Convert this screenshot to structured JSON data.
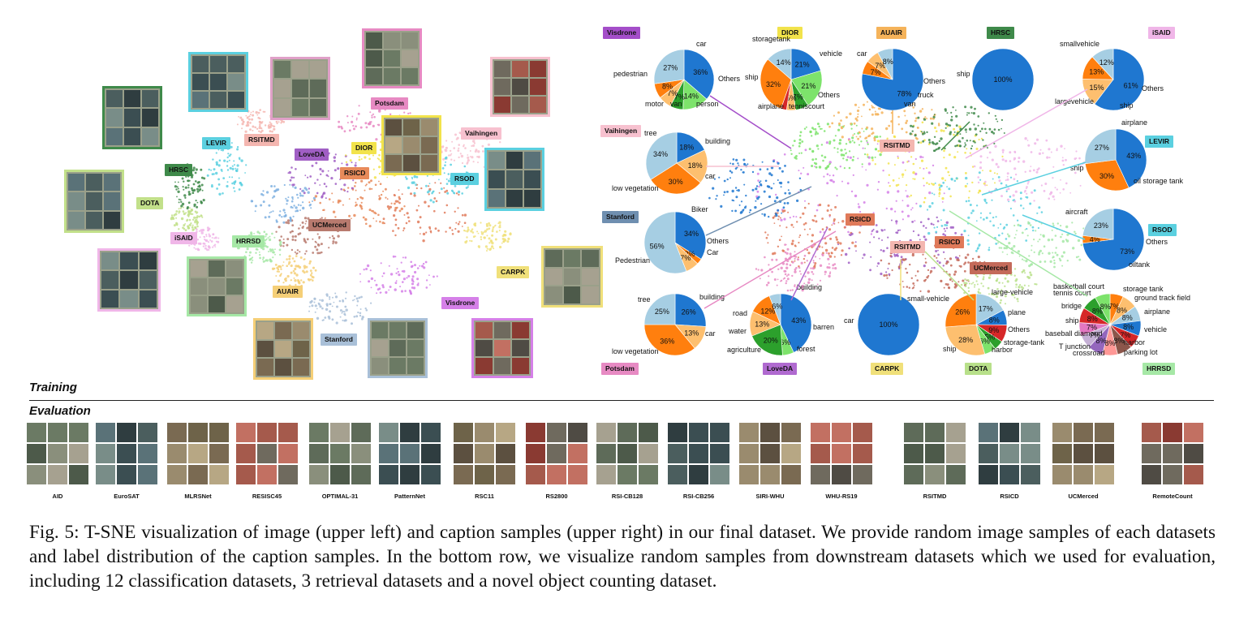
{
  "image_tsne": {
    "labels": [
      {
        "text": "Potsdam",
        "color": "#e78ac3"
      },
      {
        "text": "RSITMD",
        "color": "#f4b6b0"
      },
      {
        "text": "LEVIR",
        "color": "#5bd0e0"
      },
      {
        "text": "LoveDA",
        "color": "#a05ec4"
      },
      {
        "text": "DIOR",
        "color": "#f2e34b"
      },
      {
        "text": "Vaihingen",
        "color": "#f7c1cf"
      },
      {
        "text": "HRSC",
        "color": "#3f8a4a"
      },
      {
        "text": "RSICD",
        "color": "#e88a5a"
      },
      {
        "text": "RSOD",
        "color": "#5bd0e0"
      },
      {
        "text": "DOTA",
        "color": "#c2e08a"
      },
      {
        "text": "UCMerced",
        "color": "#b87a6e"
      },
      {
        "text": "iSAID",
        "color": "#f0b6e8"
      },
      {
        "text": "HRRSD",
        "color": "#a6e8a6"
      },
      {
        "text": "CARPK",
        "color": "#f0e07a"
      },
      {
        "text": "AUAIR",
        "color": "#f5cf77"
      },
      {
        "text": "Visdrone",
        "color": "#d580e8"
      },
      {
        "text": "Stanford",
        "color": "#a9c0d8"
      }
    ]
  },
  "caption_tsne": {
    "labels": [
      {
        "text": "Visdrone",
        "color": "#a44ec9"
      },
      {
        "text": "DIOR",
        "color": "#f2e34b"
      },
      {
        "text": "AUAIR",
        "color": "#f5b35a"
      },
      {
        "text": "HRSC",
        "color": "#3f8a4a"
      },
      {
        "text": "iSAID",
        "color": "#f0b6e8"
      },
      {
        "text": "Vaihingen",
        "color": "#f7c1cf"
      },
      {
        "text": "LEVIR",
        "color": "#5bd0e0"
      },
      {
        "text": "RSITMD",
        "color": "#f4b6b0"
      },
      {
        "text": "Stanford",
        "color": "#6f8fb0"
      },
      {
        "text": "RSICD",
        "color": "#e07a5a"
      },
      {
        "text": "RSOD",
        "color": "#5bd0e0"
      },
      {
        "text": "RSITMD",
        "color": "#f4b6b0"
      },
      {
        "text": "RSICD",
        "color": "#e07a5a"
      },
      {
        "text": "UCMerced",
        "color": "#c46a5a"
      },
      {
        "text": "Potsdam",
        "color": "#e78ac3"
      },
      {
        "text": "LoveDA",
        "color": "#b06ad0"
      },
      {
        "text": "CARPK",
        "color": "#f0e07a"
      },
      {
        "text": "DOTA",
        "color": "#b8e08a"
      },
      {
        "text": "HRRSD",
        "color": "#a6e8a6"
      }
    ]
  },
  "pies": [
    {
      "id": "visdrone",
      "slices": [
        {
          "label": "car",
          "pct": "36%",
          "color": "#1f77d0"
        },
        {
          "label": "Others",
          "pct": "14%",
          "color": "#7de36b"
        },
        {
          "label": "person",
          "pct": "7%",
          "color": "#2ca02c"
        },
        {
          "label": "van",
          "pct": "7%",
          "color": "#fdbf6f"
        },
        {
          "label": "motor",
          "pct": "8%",
          "color": "#ff7f0e"
        },
        {
          "label": "pedestrian",
          "pct": "27%",
          "color": "#a6cee3"
        }
      ]
    },
    {
      "id": "dior",
      "slices": [
        {
          "label": "vehicle",
          "pct": "21%",
          "color": "#1f77d0"
        },
        {
          "label": "Others",
          "pct": "21%",
          "color": "#7de36b"
        },
        {
          "label": "tenniscourt",
          "pct": "7%",
          "color": "#2ca02c"
        },
        {
          "label": "",
          "pct": "5%",
          "color": "#fdbf6f"
        },
        {
          "label": "airplane",
          "pct": "",
          "color": "#d62728"
        },
        {
          "label": "ship",
          "pct": "32%",
          "color": "#ff7f0e"
        },
        {
          "label": "storagetank",
          "pct": "14%",
          "color": "#a6cee3"
        }
      ]
    },
    {
      "id": "auair",
      "slices": [
        {
          "label": "car",
          "pct": "78%",
          "color": "#1f77d0"
        },
        {
          "label": "Others",
          "pct": "7%",
          "color": "#ff7f0e"
        },
        {
          "label": "truck",
          "pct": "7%",
          "color": "#fdbf6f"
        },
        {
          "label": "van",
          "pct": "8%",
          "color": "#a6cee3"
        }
      ]
    },
    {
      "id": "hrsc",
      "slices": [
        {
          "label": "ship",
          "pct": "100%",
          "color": "#1f77d0"
        }
      ]
    },
    {
      "id": "isaid",
      "slices": [
        {
          "label": "smallvehicle",
          "pct": "61%",
          "color": "#1f77d0"
        },
        {
          "label": "Others",
          "pct": "15%",
          "color": "#fdbf6f"
        },
        {
          "label": "ship",
          "pct": "13%",
          "color": "#ff7f0e"
        },
        {
          "label": "largevehicle",
          "pct": "12%",
          "color": "#a6cee3"
        }
      ]
    },
    {
      "id": "vaihingen",
      "slices": [
        {
          "label": "building",
          "pct": "18%",
          "color": "#1f77d0"
        },
        {
          "label": "car",
          "pct": "18%",
          "color": "#fdbf6f"
        },
        {
          "label": "low vegetation",
          "pct": "30%",
          "color": "#ff7f0e"
        },
        {
          "label": "tree",
          "pct": "34%",
          "color": "#a6cee3"
        }
      ]
    },
    {
      "id": "levir",
      "slices": [
        {
          "label": "airplane",
          "pct": "43%",
          "color": "#1f77d0"
        },
        {
          "label": "oil storage tank",
          "pct": "30%",
          "color": "#ff7f0e"
        },
        {
          "label": "ship",
          "pct": "27%",
          "color": "#a6cee3"
        }
      ]
    },
    {
      "id": "stanford",
      "slices": [
        {
          "label": "Biker",
          "pct": "34%",
          "color": "#1f77d0"
        },
        {
          "label": "Others",
          "pct": "3%",
          "color": "#ff7f0e"
        },
        {
          "label": "Car",
          "pct": "7%",
          "color": "#fdbf6f"
        },
        {
          "label": "Pedestrian",
          "pct": "56%",
          "color": "#a6cee3"
        }
      ]
    },
    {
      "id": "rsod",
      "slices": [
        {
          "label": "aircraft",
          "pct": "73%",
          "color": "#1f77d0"
        },
        {
          "label": "Others",
          "pct": "4%",
          "color": "#ff7f0e"
        },
        {
          "label": "oiltank",
          "pct": "23%",
          "color": "#a6cee3"
        }
      ]
    },
    {
      "id": "potsdam",
      "slices": [
        {
          "label": "building",
          "pct": "26%",
          "color": "#1f77d0"
        },
        {
          "label": "car",
          "pct": "13%",
          "color": "#fdbf6f"
        },
        {
          "label": "low vegetation",
          "pct": "36%",
          "color": "#ff7f0e"
        },
        {
          "label": "tree",
          "pct": "25%",
          "color": "#a6cee3"
        }
      ]
    },
    {
      "id": "loveda",
      "slices": [
        {
          "label": "building",
          "pct": "43%",
          "color": "#1f77d0"
        },
        {
          "label": "barren",
          "pct": "6%",
          "color": "#7de36b"
        },
        {
          "label": "forest",
          "pct": "20%",
          "color": "#2ca02c"
        },
        {
          "label": "agriculture",
          "pct": "13%",
          "color": "#fdbf6f"
        },
        {
          "label": "water",
          "pct": "12%",
          "color": "#ff7f0e"
        },
        {
          "label": "road",
          "pct": "6%",
          "color": "#a6cee3"
        }
      ]
    },
    {
      "id": "carpk",
      "slices": [
        {
          "label": "car",
          "pct": "100%",
          "color": "#1f77d0"
        }
      ]
    },
    {
      "id": "dota",
      "slices": [
        {
          "label": "large-vehicle",
          "pct": "17%",
          "color": "#a6cee3"
        },
        {
          "label": "plane",
          "pct": "8%",
          "color": "#1f77d0"
        },
        {
          "label": "Others",
          "pct": "9%",
          "color": "#d62728"
        },
        {
          "label": "storage-tank",
          "pct": "5%",
          "color": "#2ca02c"
        },
        {
          "label": "harbor",
          "pct": "6%",
          "color": "#7de36b"
        },
        {
          "label": "ship",
          "pct": "28%",
          "color": "#fdbf6f"
        },
        {
          "label": "small-vehicle",
          "pct": "26%",
          "color": "#ff7f0e"
        }
      ]
    },
    {
      "id": "hrrsd",
      "slices": [
        {
          "label": "storage tank",
          "pct": "7%",
          "color": "#ff7f0e"
        },
        {
          "label": "ground track field",
          "pct": "8%",
          "color": "#fdbf6f"
        },
        {
          "label": "airplane",
          "pct": "8%",
          "color": "#a6cee3"
        },
        {
          "label": "vehicle",
          "pct": "8%",
          "color": "#1f77d0"
        },
        {
          "label": "parking lot",
          "pct": "7%",
          "color": "#d62728"
        },
        {
          "label": "harbor",
          "pct": "8%",
          "color": "#8c564b"
        },
        {
          "label": "crossroad",
          "pct": "8%",
          "color": "#ff9896"
        },
        {
          "label": "T junction",
          "pct": "8%",
          "color": "#9467bd"
        },
        {
          "label": "baseball diamond",
          "pct": "7%",
          "color": "#c5b0d5"
        },
        {
          "label": "ship",
          "pct": "7%",
          "color": "#e377c2"
        },
        {
          "label": "bridge",
          "pct": "8%",
          "color": "#d62728"
        },
        {
          "label": "tennis court",
          "pct": "8%",
          "color": "#2ca02c"
        },
        {
          "label": "basketball court",
          "pct": "8%",
          "color": "#7de36b"
        }
      ]
    }
  ],
  "sections": {
    "training": "Training",
    "evaluation": "Evaluation"
  },
  "eval_datasets": [
    "AID",
    "EuroSAT",
    "MLRSNet",
    "RESISC45",
    "OPTIMAL-31",
    "PatternNet",
    "RSC11",
    "RS2800",
    "RSI-CB128",
    "RSI-CB256",
    "SIRI-WHU",
    "WHU-RS19",
    "RSITMD",
    "RSICD",
    "UCMerced",
    "RemoteCount"
  ],
  "caption": "Fig. 5: T-SNE visualization of image (upper left) and caption samples (upper right) in our final dataset. We provide random image samples of each datasets and label distribution of the caption samples. In the bottom row, we visualize random samples from downstream datasets which we used for evaluation, including 12 classification datasets, 3 retrieval datasets and a novel object counting dataset."
}
